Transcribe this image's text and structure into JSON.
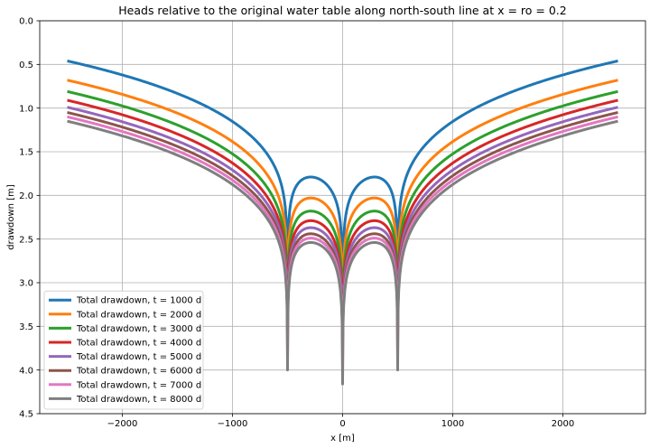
{
  "chart_data": {
    "type": "line",
    "title": "Heads relative to the original water table along north-south line at x = ro = 0.2",
    "xlabel": "x [m]",
    "ylabel": "drawdown [m]",
    "xlim": [
      -2750,
      2750
    ],
    "ylim": [
      4.5,
      0.0
    ],
    "y_inverted": true,
    "grid": true,
    "x_ticks": [
      -2000,
      -1000,
      0,
      1000,
      2000
    ],
    "x_tick_labels": [
      "−2000",
      "−1000",
      "0",
      "1000",
      "2000"
    ],
    "y_ticks": [
      0.0,
      0.5,
      1.0,
      1.5,
      2.0,
      2.5,
      3.0,
      3.5,
      4.0,
      4.5
    ],
    "y_tick_labels": [
      "0.0",
      "0.5",
      "1.0",
      "1.5",
      "2.0",
      "2.5",
      "3.0",
      "3.5",
      "4.0",
      "4.5"
    ],
    "legend_position": "lower-left",
    "wells_x": [
      -500,
      0,
      500
    ],
    "series": [
      {
        "name": "Total drawdown, t = 1000 d",
        "color": "#1f77b4",
        "edge_value": 0.46,
        "hump_value": 1.79
      },
      {
        "name": "Total drawdown, t = 2000 d",
        "color": "#ff7f0e",
        "edge_value": 0.68,
        "hump_value": 2.03
      },
      {
        "name": "Total drawdown, t = 3000 d",
        "color": "#2ca02c",
        "edge_value": 0.81,
        "hump_value": 2.18
      },
      {
        "name": "Total drawdown, t = 4000 d",
        "color": "#d62728",
        "edge_value": 0.91,
        "hump_value": 2.29
      },
      {
        "name": "Total drawdown, t = 5000 d",
        "color": "#9467bd",
        "edge_value": 0.99,
        "hump_value": 2.37
      },
      {
        "name": "Total drawdown, t = 6000 d",
        "color": "#8c564b",
        "edge_value": 1.05,
        "hump_value": 2.44
      },
      {
        "name": "Total drawdown, t = 7000 d",
        "color": "#e377c2",
        "edge_value": 1.1,
        "hump_value": 2.49
      },
      {
        "name": "Total drawdown, t = 8000 d",
        "color": "#7f7f7f",
        "edge_value": 1.15,
        "hump_value": 2.54
      }
    ]
  }
}
